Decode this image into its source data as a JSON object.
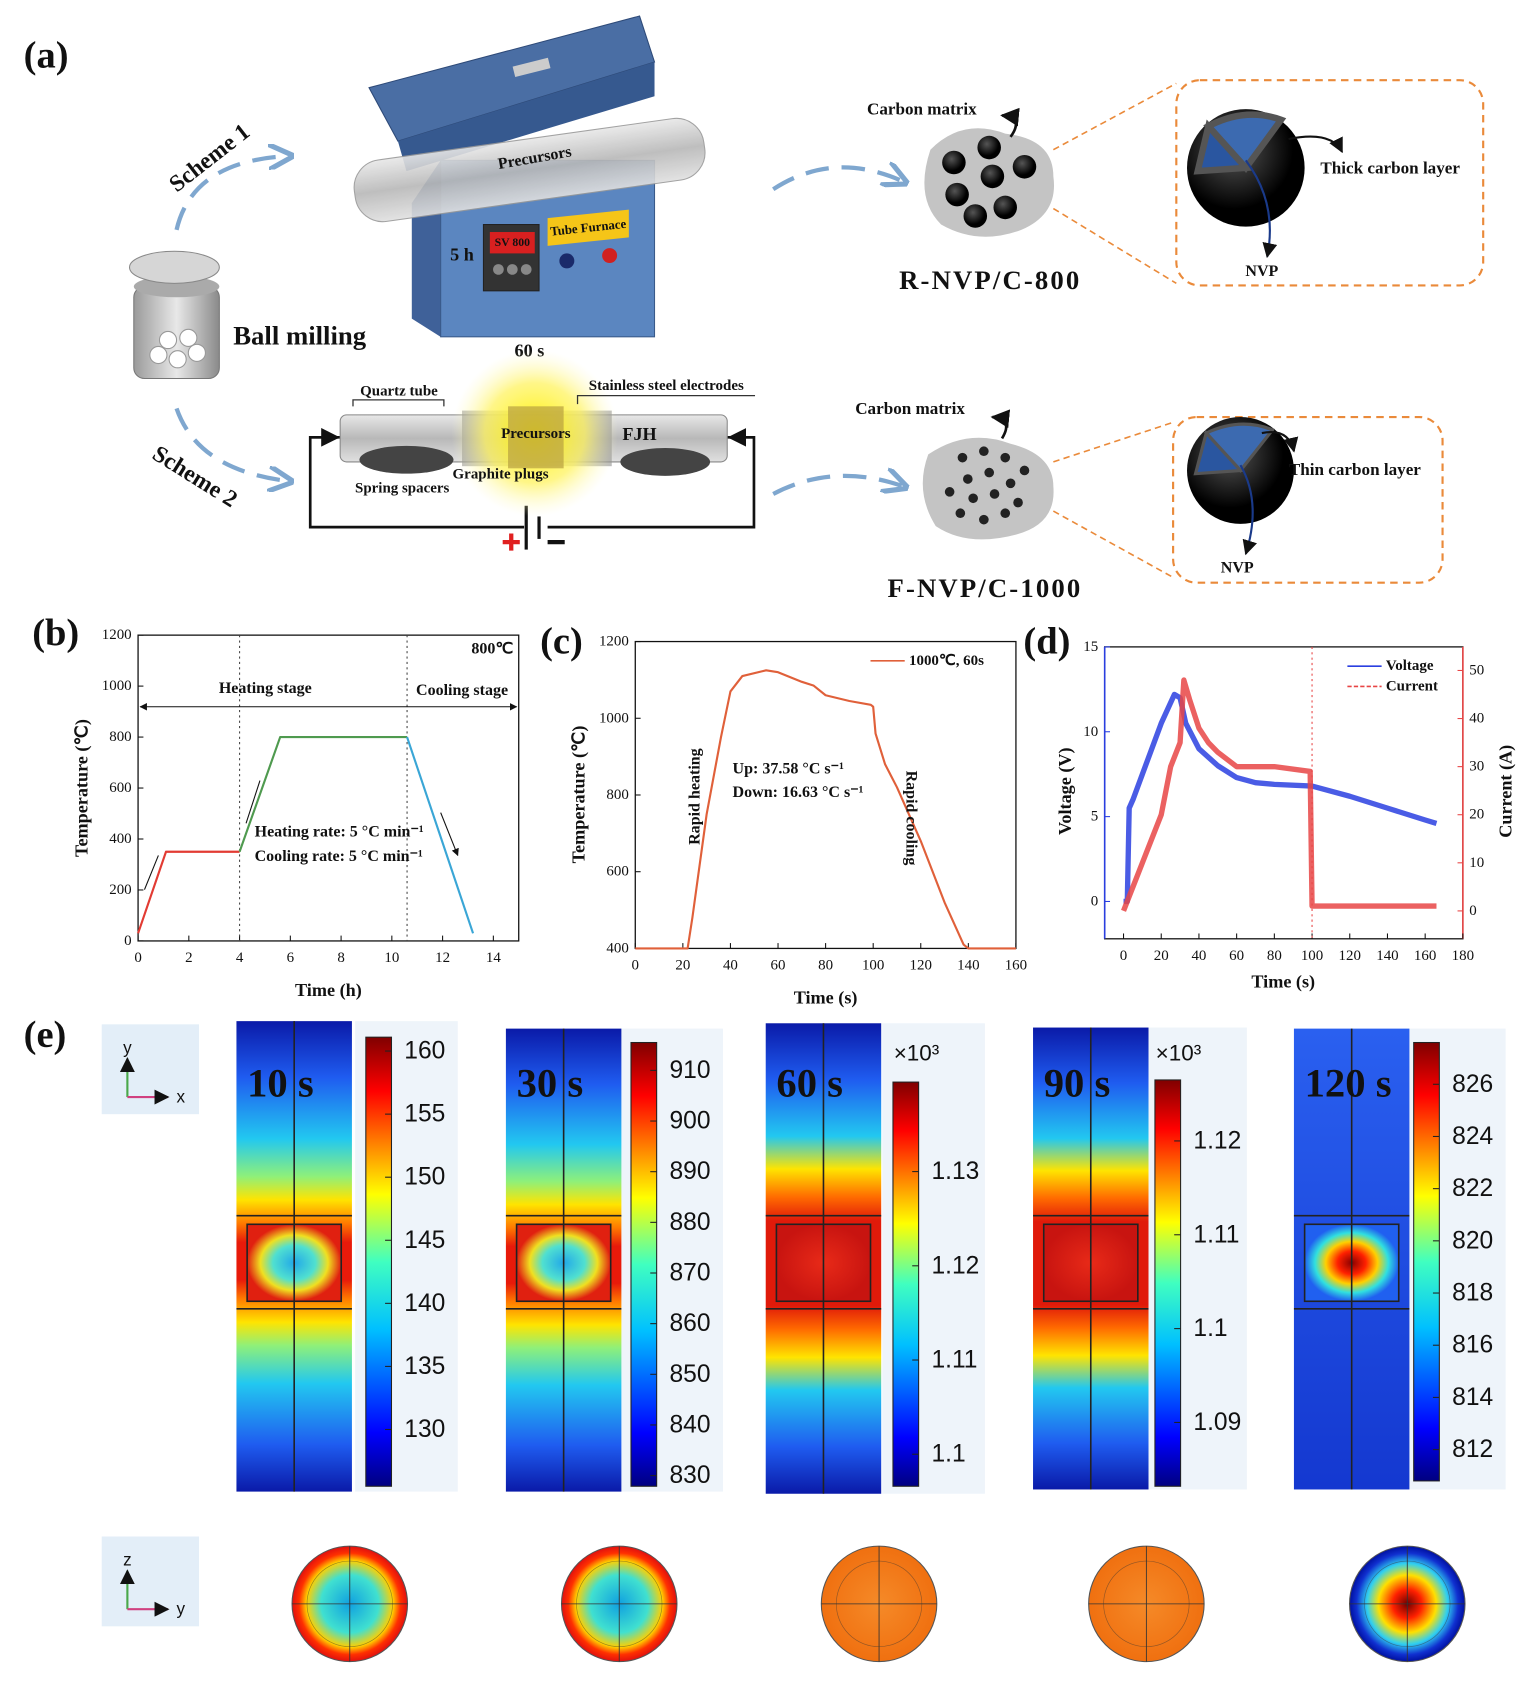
{
  "panel_a": {
    "label": "(a)",
    "scheme_1": "Scheme 1",
    "scheme_2": "Scheme 2",
    "ball_milling": "Ball milling",
    "furnace_precursors": "Precursors",
    "sv": "SV 800",
    "tube_furnace": "Tube Furnace",
    "furnace_time": "5 h",
    "fjh_time": "60 s",
    "quartz_tube": "Quartz tube",
    "electrodes": "Stainless steel electrodes",
    "fjh_precursors": "Precursors",
    "fjh": "FJH",
    "graphite_plugs": "Graphite plugs",
    "spring_spacers": "Spring spacers",
    "carbon_matrix_1": "Carbon matrix",
    "thick_layer": "Thick carbon layer",
    "nvp_1": "NVP",
    "product_1": "R-NVP/C-800",
    "carbon_matrix_2": "Carbon matrix",
    "thin_layer": "Thin carbon layer",
    "nvp_2": "NVP",
    "product_2": "F-NVP/C-1000"
  },
  "chart_data": [
    {
      "panel": "(b)",
      "type": "line",
      "xlabel": "Time (h)",
      "ylabel": "Temperature (℃)",
      "xlim": [
        0,
        15
      ],
      "xticks": [
        0,
        2,
        4,
        6,
        8,
        10,
        12,
        14
      ],
      "ylim": [
        0,
        1200
      ],
      "yticks": [
        0,
        200,
        400,
        600,
        800,
        1000,
        1200
      ],
      "series": [
        {
          "color": "#e23b33",
          "x": [
            0,
            1.1,
            4
          ],
          "values": [
            30,
            350,
            350
          ]
        },
        {
          "color": "#4f9a4f",
          "x": [
            4,
            5.6,
            10.6
          ],
          "values": [
            350,
            800,
            800
          ]
        },
        {
          "color": "#3aa6d6",
          "x": [
            10.6,
            13.2
          ],
          "values": [
            800,
            30
          ]
        }
      ],
      "reference_lines_x": [
        4,
        10.6
      ],
      "annotations": [
        "800℃",
        "Heating stage",
        "Cooling stage",
        "Heating rate: 5 °C min⁻¹",
        "Cooling rate: 5 °C min⁻¹"
      ]
    },
    {
      "panel": "(c)",
      "type": "line",
      "xlabel": "Time (s)",
      "ylabel": "Temperature (℃)",
      "xlim": [
        0,
        160
      ],
      "xticks": [
        0,
        20,
        40,
        60,
        80,
        100,
        120,
        140,
        160
      ],
      "ylim": [
        400,
        1200
      ],
      "yticks": [
        400,
        600,
        800,
        1000,
        1200
      ],
      "series": [
        {
          "name": "1000℃, 60s",
          "color": "#e0603a",
          "x": [
            0,
            22,
            24,
            30,
            36,
            40,
            45,
            55,
            60,
            70,
            75,
            80,
            90,
            99,
            100,
            101,
            105,
            110,
            120,
            130,
            138,
            140,
            160
          ],
          "values": [
            400,
            400,
            480,
            750,
            950,
            1070,
            1110,
            1125,
            1120,
            1095,
            1085,
            1060,
            1045,
            1035,
            1030,
            960,
            880,
            820,
            680,
            520,
            410,
            400,
            400
          ]
        }
      ],
      "annotations": [
        "Rapid heating",
        "Rapid cooling",
        "Up: 37.58 °C s⁻¹",
        "Down: 16.63 °C s⁻¹"
      ]
    },
    {
      "panel": "(d)",
      "type": "line",
      "xlabel": "Time (s)",
      "ylabel": "Voltage (V)",
      "y2label": "Current (A)",
      "xlim": [
        -10,
        180
      ],
      "xticks": [
        0,
        20,
        40,
        60,
        80,
        100,
        120,
        140,
        160,
        180
      ],
      "ylim": [
        -2.2,
        15
      ],
      "yticks": [
        0,
        5,
        10,
        15
      ],
      "y2lim": [
        -5.8,
        54.9
      ],
      "y2ticks": [
        0,
        10,
        20,
        30,
        40,
        50
      ],
      "series": [
        {
          "name": "Voltage",
          "color": "#2a3fe0",
          "axis": "y",
          "x": [
            0,
            2,
            3,
            5,
            10,
            20,
            27,
            30,
            33,
            40,
            50,
            60,
            70,
            80,
            100,
            120,
            140,
            160,
            166
          ],
          "values": [
            0,
            0,
            5.5,
            6,
            7.5,
            10.5,
            12.2,
            12,
            10.5,
            9,
            8,
            7.3,
            7,
            6.9,
            6.8,
            6.2,
            5.5,
            4.8,
            4.6
          ]
        },
        {
          "name": "Current",
          "color": "#e84545",
          "axis": "y2",
          "x": [
            0,
            5,
            10,
            20,
            25,
            30,
            32,
            35,
            40,
            45,
            50,
            60,
            80,
            99,
            100,
            166
          ],
          "values": [
            0,
            5,
            10,
            20,
            30,
            35,
            48,
            44,
            38,
            35,
            33,
            30,
            30,
            29,
            1,
            1
          ]
        }
      ],
      "reference_lines_x": [
        100
      ]
    }
  ],
  "panel_e": {
    "label": "(e)",
    "axis_icons": [
      {
        "vertical": "y",
        "horizontal": "x"
      },
      {
        "vertical": "z",
        "horizontal": "y"
      }
    ],
    "maps": [
      {
        "time": "10 s",
        "range": [
          125.5,
          161.1
        ],
        "ticks": [
          160,
          155,
          150,
          145,
          140,
          135,
          130
        ]
      },
      {
        "time": "30 s",
        "range": [
          827.9,
          915.5
        ],
        "ticks": [
          910,
          900,
          890,
          880,
          870,
          860,
          850,
          840,
          830
        ]
      },
      {
        "time": "60 s",
        "multiplier": "×10³",
        "range": [
          1.0966,
          1.1395
        ],
        "ticks": [
          1.13,
          1.12,
          1.11,
          1.1
        ]
      },
      {
        "time": "90 s",
        "multiplier": "×10³",
        "range": [
          1.0832,
          1.1265
        ],
        "ticks": [
          1.12,
          1.11,
          1.1,
          1.09
        ]
      },
      {
        "time": "120 s",
        "range": [
          810.8,
          827.6
        ],
        "ticks": [
          826,
          824,
          822,
          820,
          818,
          816,
          814,
          812
        ]
      }
    ]
  }
}
